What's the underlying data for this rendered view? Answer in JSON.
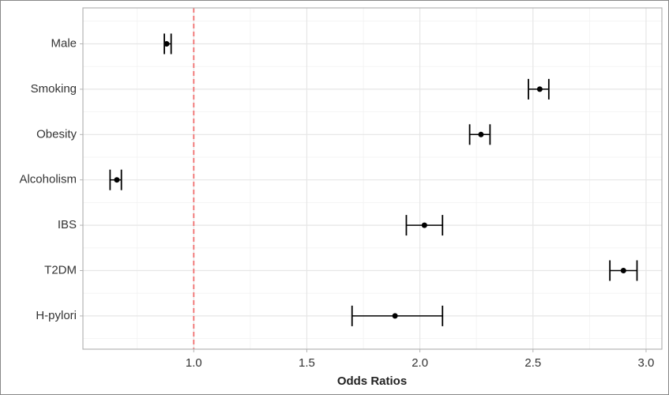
{
  "chart_data": {
    "type": "forest",
    "x_label": "Odds Ratios",
    "categories": [
      "Male",
      "Smoking",
      "Obesity",
      "Alcoholism",
      "IBS",
      "T2DM",
      "H-pylori"
    ],
    "values": [
      0.88,
      2.53,
      2.27,
      0.66,
      2.02,
      2.9,
      1.89
    ],
    "lower": [
      0.87,
      2.48,
      2.22,
      0.63,
      1.94,
      2.84,
      1.7
    ],
    "upper": [
      0.9,
      2.57,
      2.31,
      0.68,
      2.1,
      2.96,
      2.1
    ],
    "color": "#000000",
    "reference_line": 1,
    "reference_color": "#f07070",
    "xlim": [
      0.51,
      3.07
    ],
    "xticks": [
      {
        "value": 1,
        "label": "1.0"
      },
      1.5,
      {
        "value": 2,
        "label": "2.0"
      },
      2.5,
      {
        "value": 3,
        "label": "3.0"
      }
    ],
    "grid": true
  }
}
